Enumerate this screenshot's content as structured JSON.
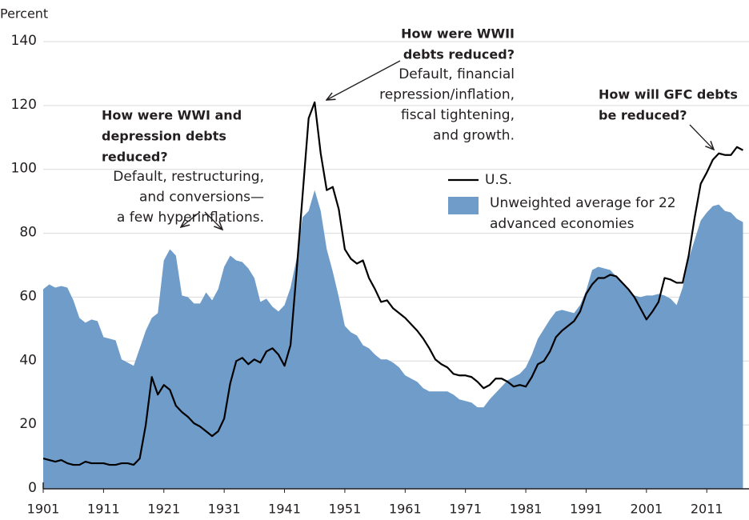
{
  "chart_data": {
    "type": "area_line",
    "y_label": "Percent",
    "x": [
      1901,
      1902,
      1903,
      1904,
      1905,
      1906,
      1907,
      1908,
      1909,
      1910,
      1911,
      1912,
      1913,
      1914,
      1915,
      1916,
      1917,
      1918,
      1919,
      1920,
      1921,
      1922,
      1923,
      1924,
      1925,
      1926,
      1927,
      1928,
      1929,
      1930,
      1931,
      1932,
      1933,
      1934,
      1935,
      1936,
      1937,
      1938,
      1939,
      1940,
      1941,
      1942,
      1943,
      1944,
      1945,
      1946,
      1947,
      1948,
      1949,
      1950,
      1951,
      1952,
      1953,
      1954,
      1955,
      1956,
      1957,
      1958,
      1959,
      1960,
      1961,
      1962,
      1963,
      1964,
      1965,
      1966,
      1967,
      1968,
      1969,
      1970,
      1971,
      1972,
      1973,
      1974,
      1975,
      1976,
      1977,
      1978,
      1979,
      1980,
      1981,
      1982,
      1983,
      1984,
      1985,
      1986,
      1987,
      1988,
      1989,
      1990,
      1991,
      1992,
      1993,
      1994,
      1995,
      1996,
      1997,
      1998,
      1999,
      2000,
      2001,
      2002,
      2003,
      2004,
      2005,
      2006,
      2007,
      2008,
      2009,
      2010,
      2011,
      2012,
      2013,
      2014,
      2015,
      2016,
      2017
    ],
    "series": [
      {
        "name": "Unweighted average for 22 advanced economies",
        "kind": "area",
        "color": "#6f9cc9",
        "values": [
          62.5,
          64,
          63,
          63.5,
          63,
          59,
          53.5,
          52,
          53,
          52.5,
          47.5,
          47,
          46.5,
          40.5,
          39.5,
          38.5,
          44,
          49.5,
          53.5,
          55,
          71.5,
          75,
          73,
          60.5,
          60,
          58,
          58,
          61.5,
          59,
          62.5,
          69.5,
          73,
          71.5,
          71,
          69,
          66,
          58.5,
          59.5,
          57,
          55.5,
          57.5,
          63,
          72,
          85,
          87,
          93.5,
          87,
          75,
          68,
          60,
          51,
          49,
          48,
          45,
          44,
          42,
          40.5,
          40.5,
          39.5,
          38,
          35.5,
          34.5,
          33.5,
          31.5,
          30.5,
          30.5,
          30.5,
          30.5,
          29.5,
          28,
          27.5,
          27,
          25.5,
          25.5,
          28,
          30,
          32,
          34,
          35,
          36,
          38,
          42,
          47,
          50,
          53,
          55.5,
          56,
          55.5,
          55,
          57.5,
          62,
          68.5,
          69.5,
          69,
          68.5,
          66.5,
          64.5,
          62.5,
          60.5,
          60,
          60.5,
          60.5,
          61,
          60.5,
          59.5,
          57.5,
          63,
          72,
          78,
          84,
          86.5,
          88.5,
          89,
          87,
          86.5,
          84.5,
          83.5
        ]
      },
      {
        "name": "U.S.",
        "kind": "line",
        "color": "#000000",
        "values": [
          9.5,
          9,
          8.5,
          9,
          8,
          7.5,
          7.5,
          8.5,
          8,
          8,
          8,
          7.5,
          7.5,
          8,
          8,
          7.5,
          9.5,
          20,
          35,
          29.5,
          32.5,
          31,
          26,
          24,
          22.5,
          20.5,
          19.5,
          18,
          16.5,
          18,
          22,
          33,
          40,
          41,
          39,
          40.5,
          39.5,
          43,
          44,
          42,
          38.5,
          45,
          68,
          92,
          116,
          121,
          105,
          93.5,
          94.5,
          87.5,
          75,
          72,
          70.5,
          71.5,
          66,
          62.5,
          58.5,
          59,
          56.5,
          55,
          53.5,
          51.5,
          49.5,
          47,
          44,
          40.5,
          39,
          38,
          36,
          35.5,
          35.5,
          35,
          33.5,
          31.5,
          32.5,
          34.5,
          34.5,
          33.5,
          32,
          32.5,
          32,
          35,
          39,
          40,
          43,
          47.5,
          49.5,
          51,
          52.5,
          55.5,
          61,
          64,
          66,
          66,
          67,
          66.5,
          64.5,
          62.5,
          60,
          56.5,
          53,
          55.5,
          58.5,
          66,
          65.5,
          64.5,
          64.5,
          73,
          85,
          95.5,
          99,
          103,
          105,
          104.5,
          104.5,
          107,
          106
        ]
      }
    ],
    "xlim": [
      1901,
      2018
    ],
    "xticks": [
      1901,
      1911,
      1921,
      1931,
      1941,
      1951,
      1961,
      1971,
      1981,
      1991,
      2001,
      2011
    ],
    "ylim": [
      0,
      140
    ],
    "yticks": [
      0,
      20,
      40,
      60,
      80,
      100,
      120,
      140
    ],
    "grid": true,
    "annotations": [
      {
        "bold": [
          "How were WWI and",
          "depression debts",
          "reduced?"
        ],
        "lines": [
          "Default, restructuring,",
          "and conversions—",
          "a few hyperinflations."
        ]
      },
      {
        "bold": [
          "How were WWII",
          "debts reduced?"
        ],
        "lines": [
          "Default, financial",
          "repression/inflation,",
          "fiscal tightening,",
          "and growth."
        ]
      },
      {
        "bold": [
          "How will GFC debts",
          "be reduced?"
        ],
        "lines": []
      }
    ]
  }
}
